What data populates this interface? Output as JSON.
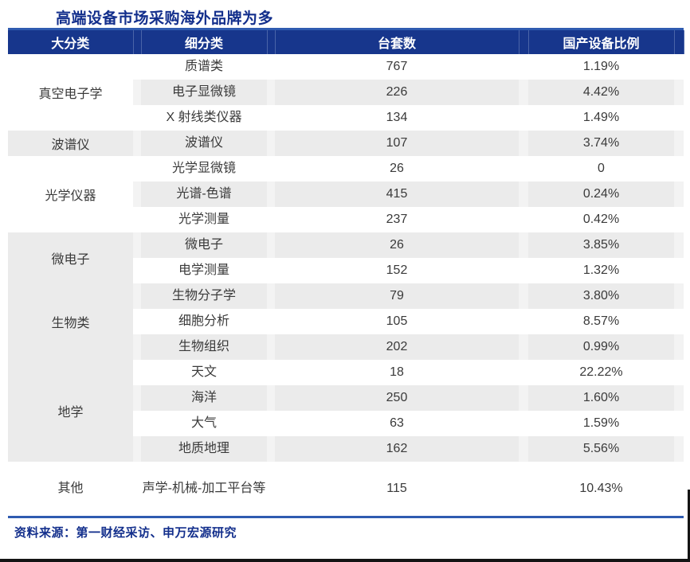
{
  "title": "高端设备市场采购海外品牌为多",
  "source_note": "资料来源：第一财经采访、申万宏源研究",
  "colors": {
    "header_bg": "#17368C",
    "header_separator": "#4A64A8",
    "accent_line": "#2F5BB0",
    "row_shaded": "#EBEBEB",
    "row_spacer_shaded": "#F3F3F3",
    "title_text": "#132F8C",
    "body_text": "#3A3A3A",
    "header_text": "#FFFFFF",
    "edge_bar": "#141414"
  },
  "table": {
    "headers": [
      "大分类",
      "细分类",
      "台套数",
      "国产设备比例"
    ],
    "groups": [
      {
        "category": "真空电子学",
        "shaded": false,
        "rows": [
          {
            "sub": "质谱类",
            "count": "767",
            "ratio": "1.19%"
          },
          {
            "sub": "电子显微镜",
            "count": "226",
            "ratio": "4.42%"
          },
          {
            "sub": "X 射线类仪器",
            "count": "134",
            "ratio": "1.49%"
          }
        ]
      },
      {
        "category": "波谱仪",
        "shaded": true,
        "rows": [
          {
            "sub": "波谱仪",
            "count": "107",
            "ratio": "3.74%"
          }
        ]
      },
      {
        "category": "光学仪器",
        "shaded": false,
        "rows": [
          {
            "sub": "光学显微镜",
            "count": "26",
            "ratio": "0"
          },
          {
            "sub": "光谱-色谱",
            "count": "415",
            "ratio": "0.24%"
          },
          {
            "sub": "光学测量",
            "count": "237",
            "ratio": "0.42%"
          }
        ]
      },
      {
        "category": "微电子",
        "shaded": true,
        "rows": [
          {
            "sub": "微电子",
            "count": "26",
            "ratio": "3.85%"
          },
          {
            "sub": "电学测量",
            "count": "152",
            "ratio": "1.32%"
          }
        ]
      },
      {
        "category": "生物类",
        "shaded": false,
        "rows": [
          {
            "sub": "生物分子学",
            "count": "79",
            "ratio": "3.80%"
          },
          {
            "sub": "细胞分析",
            "count": "105",
            "ratio": "8.57%"
          },
          {
            "sub": "生物组织",
            "count": "202",
            "ratio": "0.99%"
          }
        ]
      },
      {
        "category": "地学",
        "shaded": true,
        "rows": [
          {
            "sub": "天文",
            "count": "18",
            "ratio": "22.22%"
          },
          {
            "sub": "海洋",
            "count": "250",
            "ratio": "1.60%"
          },
          {
            "sub": "大气",
            "count": "63",
            "ratio": "1.59%"
          },
          {
            "sub": "地质地理",
            "count": "162",
            "ratio": "5.56%"
          }
        ]
      },
      {
        "category": "其他",
        "shaded": false,
        "rows": [
          {
            "sub": "声学-机械-加工平台等",
            "count": "115",
            "ratio": "10.43%",
            "tall": true
          }
        ]
      }
    ]
  },
  "chart_data": {
    "type": "table",
    "title": "高端设备市场采购海外品牌为多",
    "columns": [
      "大分类",
      "细分类",
      "台套数",
      "国产设备比例"
    ],
    "rows": [
      [
        "真空电子学",
        "质谱类",
        767,
        "1.19%"
      ],
      [
        "真空电子学",
        "电子显微镜",
        226,
        "4.42%"
      ],
      [
        "真空电子学",
        "X 射线类仪器",
        134,
        "1.49%"
      ],
      [
        "波谱仪",
        "波谱仪",
        107,
        "3.74%"
      ],
      [
        "光学仪器",
        "光学显微镜",
        26,
        "0"
      ],
      [
        "光学仪器",
        "光谱-色谱",
        415,
        "0.24%"
      ],
      [
        "光学仪器",
        "光学测量",
        237,
        "0.42%"
      ],
      [
        "微电子",
        "微电子",
        26,
        "3.85%"
      ],
      [
        "微电子",
        "电学测量",
        152,
        "1.32%"
      ],
      [
        "生物类",
        "生物分子学",
        79,
        "3.80%"
      ],
      [
        "生物类",
        "细胞分析",
        105,
        "8.57%"
      ],
      [
        "生物类",
        "生物组织",
        202,
        "0.99%"
      ],
      [
        "地学",
        "天文",
        18,
        "22.22%"
      ],
      [
        "地学",
        "海洋",
        250,
        "1.60%"
      ],
      [
        "地学",
        "大气",
        63,
        "1.59%"
      ],
      [
        "地学",
        "地质地理",
        162,
        "5.56%"
      ],
      [
        "其他",
        "声学-机械-加工平台等",
        115,
        "10.43%"
      ]
    ],
    "source": "资料来源：第一财经采访、申万宏源研究"
  }
}
